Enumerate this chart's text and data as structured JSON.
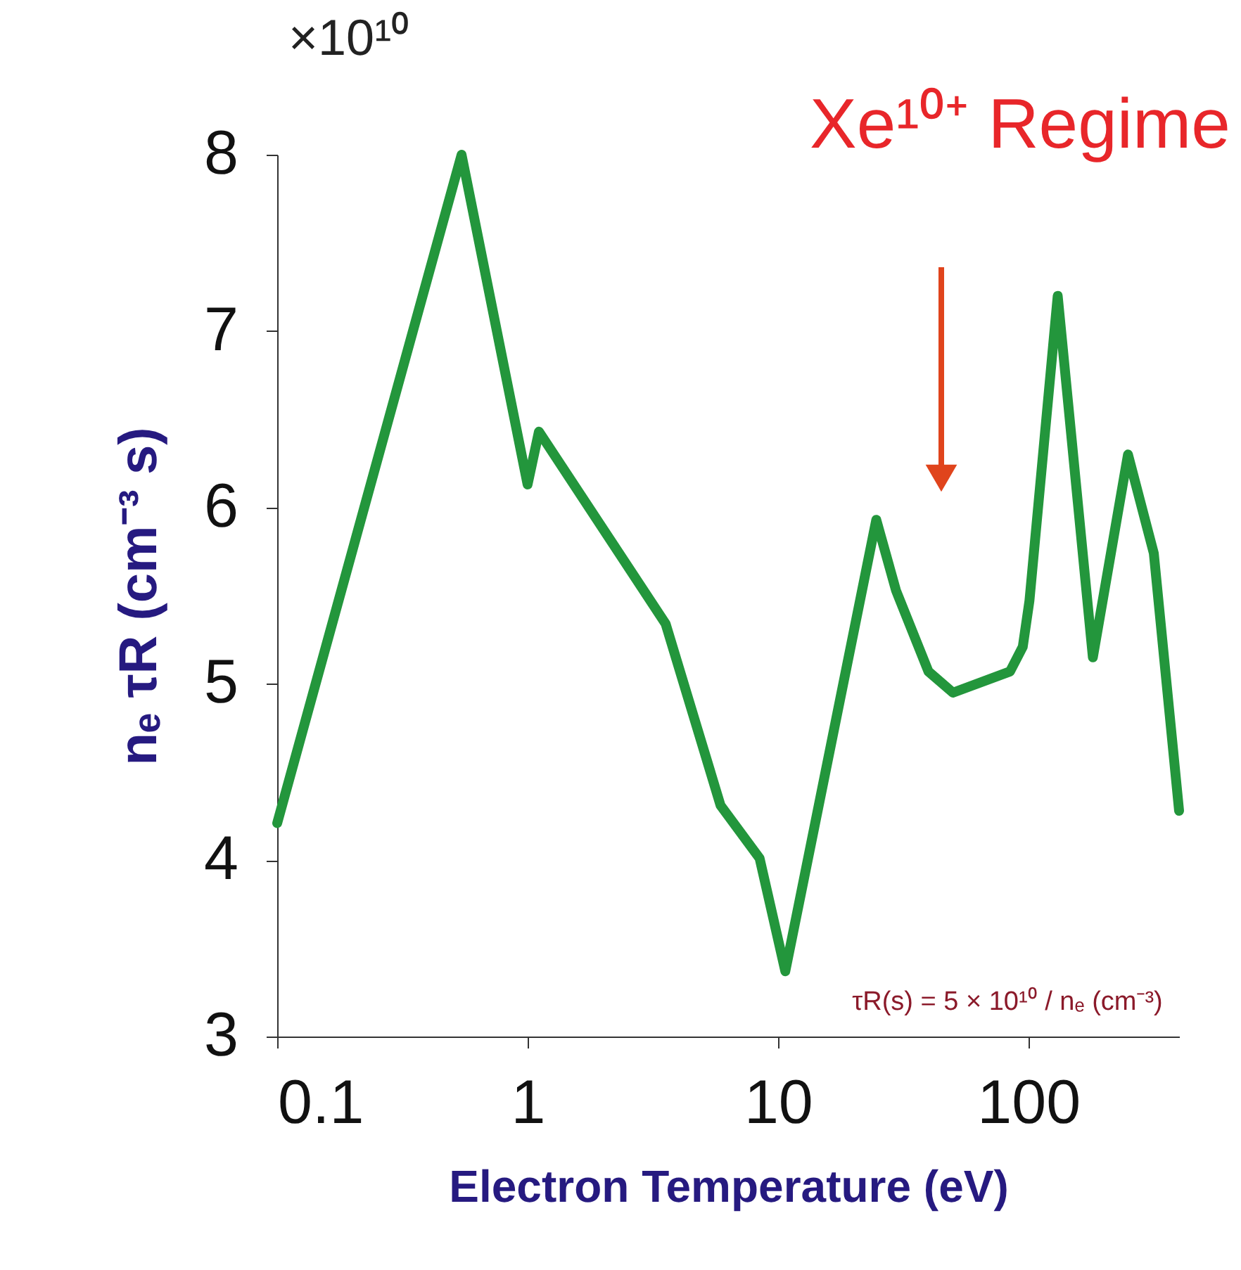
{
  "chart_data": {
    "type": "line",
    "xlabel": "Electron Temperature (eV)",
    "ylabel": "nₑ τR (cm⁻³ s)",
    "series": [
      {
        "color": "#23963c",
        "x": [
          0.1,
          0.545,
          1.0,
          1.11,
          3.56,
          5.9,
          8.45,
          10.7,
          24.7,
          29.6,
          39.9,
          50,
          84.5,
          95,
          101,
          131,
          181,
          250,
          317,
          400
        ],
        "values": [
          4.21,
          8.0,
          6.13,
          6.43,
          5.34,
          4.31,
          4.01,
          3.37,
          5.93,
          5.53,
          5.07,
          4.95,
          5.07,
          5.21,
          5.47,
          7.2,
          5.15,
          6.3,
          5.74,
          4.28
        ]
      }
    ],
    "log": "x",
    "xlim": [
      0.1,
      400
    ],
    "xticks": [
      0.1,
      1,
      10,
      100
    ],
    "ylim": [
      3,
      8
    ],
    "yticks": [
      3,
      4,
      5,
      6,
      7,
      8
    ],
    "grid": false,
    "line_style": "solid",
    "marker": "none",
    "annotations": [
      "×10¹⁰",
      "Xe¹⁰⁺ Regime",
      "τR(s) = 5 × 10¹⁰ / nₑ (cm⁻³)"
    ]
  }
}
